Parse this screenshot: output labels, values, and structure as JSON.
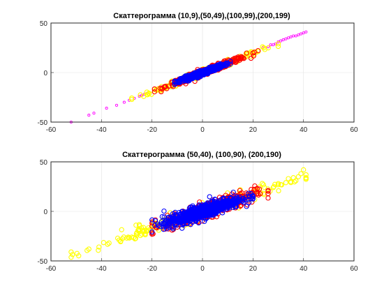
{
  "chart_data": [
    {
      "type": "scatter",
      "title": "Скаттерограмма (10,9),(50,49),(100,99),(200,199)",
      "xlabel": "",
      "ylabel": "",
      "xlim": [
        -60,
        60
      ],
      "ylim": [
        -50,
        50
      ],
      "x_ticks": [
        "-60",
        "-40",
        "-20",
        "0",
        "20",
        "40",
        "60"
      ],
      "y_ticks": [
        "-50",
        "0",
        "50"
      ],
      "grid": true,
      "legend": "none",
      "series": [
        {
          "color": "#ff00ff",
          "marker": "small-circle",
          "trend": {
            "slope": 1.0,
            "intercept": 0
          },
          "x_range": [
            -52,
            41
          ],
          "spread": 1.2,
          "points": [
            [
              -52,
              -50
            ],
            [
              -45,
              -43
            ],
            [
              -43,
              -41
            ],
            [
              -38,
              -36
            ],
            [
              -34,
              -33
            ],
            [
              -31,
              -30
            ],
            [
              -29,
              -28
            ],
            [
              -27,
              -26
            ],
            [
              -25,
              -24
            ],
            [
              -24,
              -23
            ],
            [
              -23,
              -22
            ],
            [
              -22,
              -21
            ],
            [
              24,
              25
            ],
            [
              26,
              26
            ],
            [
              27,
              28
            ],
            [
              28,
              28
            ],
            [
              29,
              29
            ],
            [
              30,
              31
            ],
            [
              31,
              32
            ],
            [
              32,
              33
            ],
            [
              33,
              34
            ],
            [
              34,
              35
            ],
            [
              35,
              36
            ],
            [
              36,
              37
            ],
            [
              37,
              37
            ],
            [
              38,
              38
            ],
            [
              39,
              39
            ],
            [
              40,
              40
            ],
            [
              41,
              41
            ]
          ]
        },
        {
          "color": "#ffff00",
          "marker": "circle",
          "trend": {
            "slope": 0.98,
            "intercept": 0
          },
          "x_range": [
            -28,
            30
          ],
          "spread": 1.5
        },
        {
          "color": "#ff0000",
          "marker": "circle",
          "trend": {
            "slope": 0.95,
            "intercept": 0
          },
          "x_range": [
            -19,
            22
          ],
          "spread": 1.5
        },
        {
          "color": "#0000ff",
          "marker": "circle",
          "trend": {
            "slope": 0.9,
            "intercept": 0
          },
          "x_range": [
            -11,
            11
          ],
          "spread": 1.2
        }
      ]
    },
    {
      "type": "scatter",
      "title": "Скаттерограмма (50,40), (100,90), (200,190)",
      "xlabel": "",
      "ylabel": "",
      "xlim": [
        -60,
        60
      ],
      "ylim": [
        -50,
        50
      ],
      "x_ticks": [
        "-60",
        "-40",
        "-20",
        "0",
        "20",
        "40",
        "60"
      ],
      "y_ticks": [
        "-50",
        "0",
        "50"
      ],
      "grid": true,
      "legend": "none",
      "series": [
        {
          "color": "#ffff00",
          "marker": "circle",
          "trend": {
            "slope": 0.85,
            "intercept": 0
          },
          "x_range": [
            -52,
            41
          ],
          "spread": 3.5,
          "points": [
            [
              -52,
              -41
            ],
            [
              -45,
              -38
            ],
            [
              -41,
              -36
            ],
            [
              -37,
              -32
            ],
            [
              -33,
              -29
            ],
            [
              -30,
              -27
            ],
            [
              -28,
              -26
            ],
            [
              -26,
              -24
            ],
            [
              -25,
              -20
            ],
            [
              -24,
              -23
            ],
            [
              28,
              24
            ],
            [
              30,
              28
            ],
            [
              31,
              27
            ],
            [
              33,
              29
            ],
            [
              34,
              33
            ],
            [
              35,
              30
            ],
            [
              36,
              34
            ],
            [
              37,
              31
            ],
            [
              38,
              35
            ],
            [
              39,
              38
            ],
            [
              40,
              42
            ],
            [
              41,
              37
            ],
            [
              41,
              34
            ]
          ]
        },
        {
          "color": "#ff0000",
          "marker": "circle",
          "trend": {
            "slope": 0.85,
            "intercept": 0
          },
          "x_range": [
            -20,
            26
          ],
          "spread": 4.0
        },
        {
          "color": "#0000ff",
          "marker": "circle",
          "trend": {
            "slope": 0.8,
            "intercept": 0
          },
          "x_range": [
            -20,
            20
          ],
          "spread": 3.5
        }
      ]
    }
  ]
}
